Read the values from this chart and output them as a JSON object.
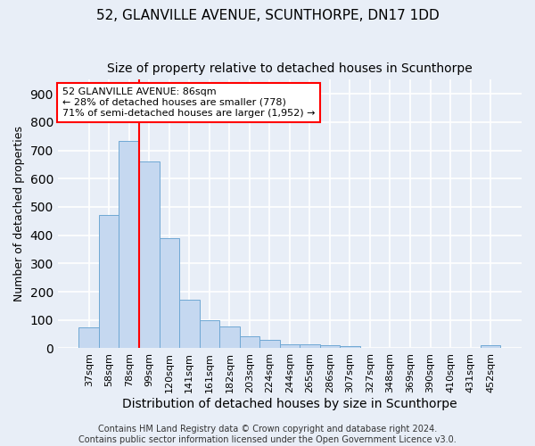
{
  "title": "52, GLANVILLE AVENUE, SCUNTHORPE, DN17 1DD",
  "subtitle": "Size of property relative to detached houses in Scunthorpe",
  "xlabel": "Distribution of detached houses by size in Scunthorpe",
  "ylabel": "Number of detached properties",
  "bin_labels": [
    "37sqm",
    "58sqm",
    "78sqm",
    "99sqm",
    "120sqm",
    "141sqm",
    "161sqm",
    "182sqm",
    "203sqm",
    "224sqm",
    "244sqm",
    "265sqm",
    "286sqm",
    "307sqm",
    "327sqm",
    "348sqm",
    "369sqm",
    "390sqm",
    "410sqm",
    "431sqm",
    "452sqm"
  ],
  "bar_values": [
    75,
    473,
    733,
    660,
    390,
    173,
    100,
    77,
    42,
    30,
    14,
    13,
    11,
    8,
    0,
    0,
    0,
    0,
    0,
    0,
    10
  ],
  "bar_color": "#c5d8f0",
  "bar_edge_color": "#6fa8d4",
  "red_line_x": 2.5,
  "annotation_text": "52 GLANVILLE AVENUE: 86sqm\n← 28% of detached houses are smaller (778)\n71% of semi-detached houses are larger (1,952) →",
  "annotation_box_color": "white",
  "annotation_box_edge_color": "red",
  "vline_color": "red",
  "footer_text": "Contains HM Land Registry data © Crown copyright and database right 2024.\nContains public sector information licensed under the Open Government Licence v3.0.",
  "bg_color": "#e8eef7",
  "plot_bg_color": "#e8eef7",
  "ylim": [
    0,
    950
  ],
  "yticks": [
    0,
    100,
    200,
    300,
    400,
    500,
    600,
    700,
    800,
    900
  ],
  "grid_color": "white",
  "title_fontsize": 11,
  "subtitle_fontsize": 10,
  "xlabel_fontsize": 10,
  "ylabel_fontsize": 9,
  "tick_fontsize": 8,
  "annot_fontsize": 8,
  "footer_fontsize": 7
}
